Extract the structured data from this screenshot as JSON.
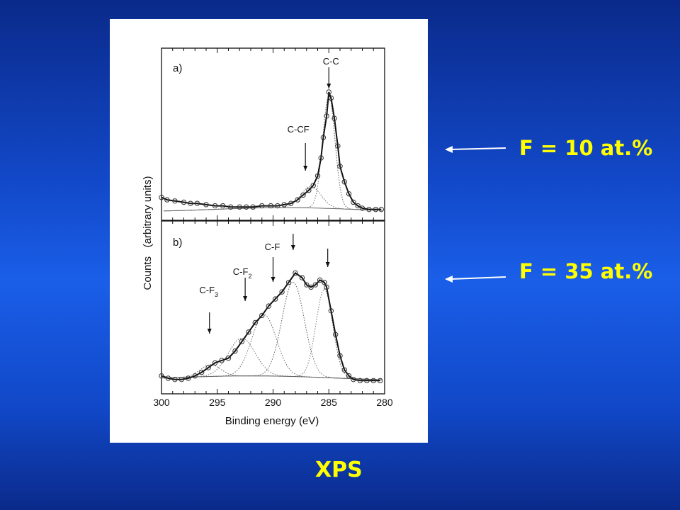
{
  "slide": {
    "annotation_a": "F = 10 at.%",
    "annotation_b": "F = 35 at.%",
    "footer_label": "XPS"
  },
  "colors": {
    "annotation_text": "#ffff00",
    "arrow": "#ffffff",
    "background": "#1a5ee8"
  },
  "chart_data": {
    "type": "line",
    "xlabel": "Binding energy (eV)",
    "ylabel": "Counts   (arbitrary units)",
    "xlim": [
      300,
      280
    ],
    "x_axis_reversed": true,
    "xticks": [
      300,
      295,
      290,
      285,
      280
    ],
    "xtick_labels": [
      "300",
      "295",
      "290",
      "285",
      "280"
    ],
    "panels": [
      {
        "label": "a)",
        "series": [
          {
            "x": [
              300,
              299.5,
              298.8,
              298,
              297.4,
              296.8,
              296,
              295.2,
              294.5,
              293.8,
              293,
              292.4,
              291.8,
              291,
              290.2,
              289.6,
              289,
              288.4,
              287.8,
              287.3,
              286.8,
              286.4,
              286,
              285.7,
              285.5,
              285.2,
              285,
              284.8,
              284.5,
              284.2,
              284,
              283.6,
              283.2,
              282.8,
              282.4,
              282,
              281.4,
              280.8,
              280.3
            ],
            "y": [
              0.12,
              0.1,
              0.09,
              0.08,
              0.07,
              0.07,
              0.06,
              0.05,
              0.05,
              0.04,
              0.04,
              0.04,
              0.04,
              0.05,
              0.05,
              0.05,
              0.06,
              0.07,
              0.1,
              0.14,
              0.18,
              0.22,
              0.3,
              0.45,
              0.62,
              0.8,
              1.0,
              0.95,
              0.78,
              0.55,
              0.38,
              0.25,
              0.15,
              0.08,
              0.05,
              0.03,
              0.02,
              0.02,
              0.02
            ]
          }
        ],
        "annotations": [
          {
            "text": "C-C",
            "x": 285.0
          },
          {
            "text": "C-CF",
            "x": 287.1
          }
        ]
      },
      {
        "label": "b)",
        "series": [
          {
            "x": [
              300,
              299.4,
              298.8,
              298.2,
              297.6,
              297,
              296.4,
              295.8,
              295.2,
              294.6,
              294,
              293.4,
              292.8,
              292.2,
              291.6,
              291,
              290.4,
              289.8,
              289.2,
              288.6,
              288,
              287.4,
              287,
              286.6,
              286.2,
              285.8,
              285.4,
              285.2,
              284.8,
              284.4,
              284,
              283.6,
              283.2,
              282.8,
              282.2,
              281.6,
              281,
              280.4
            ],
            "y": [
              0.05,
              0.03,
              0.02,
              0.02,
              0.03,
              0.05,
              0.08,
              0.12,
              0.16,
              0.18,
              0.2,
              0.26,
              0.34,
              0.42,
              0.5,
              0.56,
              0.64,
              0.7,
              0.76,
              0.84,
              0.92,
              0.88,
              0.82,
              0.8,
              0.82,
              0.86,
              0.84,
              0.8,
              0.6,
              0.4,
              0.22,
              0.1,
              0.05,
              0.02,
              0.01,
              0.01,
              0.01,
              0.01
            ]
          }
        ],
        "annotations": [
          {
            "text": "C-F",
            "x": 290.0
          },
          {
            "text": "C-F2",
            "x": 292.5
          },
          {
            "text": "C-F3",
            "x": 295.7
          }
        ]
      }
    ],
    "grid": false
  }
}
